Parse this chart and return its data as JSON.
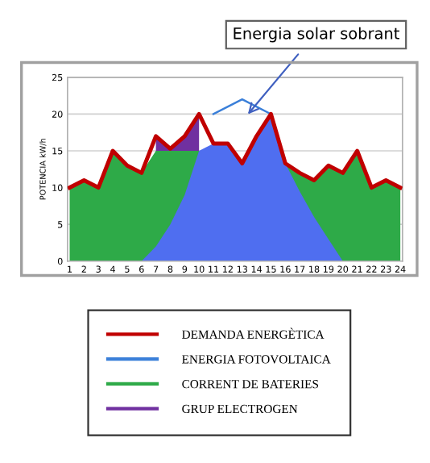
{
  "chart_data": {
    "type": "area",
    "ylabel": "POTENCIA kW/h",
    "categories": [
      "1",
      "2",
      "3",
      "4",
      "5",
      "6",
      "7",
      "8",
      "9",
      "10",
      "11",
      "12",
      "13",
      "14",
      "15",
      "16",
      "17",
      "18",
      "19",
      "20",
      "21",
      "22",
      "23",
      "24"
    ],
    "series": [
      {
        "name": "DEMANDA ENERGÈTICA",
        "type": "line",
        "color": "#c00000",
        "values": [
          10,
          11,
          10,
          15,
          13,
          12,
          17,
          15.3,
          17,
          20,
          16,
          16,
          13.3,
          17,
          20,
          13.3,
          12,
          11,
          13,
          12,
          15,
          10,
          11,
          10
        ]
      },
      {
        "name": "ENERGIA FOTOVOLTAICA",
        "type": "line",
        "color": "#3a7fd9",
        "values": [
          null,
          null,
          null,
          null,
          null,
          null,
          null,
          null,
          null,
          null,
          20,
          null,
          22,
          null,
          20,
          null,
          null,
          null,
          null,
          null,
          null,
          null,
          null,
          null
        ]
      },
      {
        "color": "#4f6ef0",
        "values": [
          null,
          null,
          null,
          null,
          null,
          0,
          2,
          5,
          9,
          15,
          16,
          16,
          13.3,
          17,
          20,
          13.3,
          9.5,
          6,
          3,
          0,
          null,
          null,
          null,
          null
        ]
      },
      {
        "name": "CORRENT DE BATERIES",
        "color": "#2eaa48",
        "values": [
          10,
          11,
          10,
          15,
          13,
          12,
          15,
          15,
          15,
          15,
          null,
          null,
          null,
          null,
          null,
          13.3,
          12,
          11,
          13,
          12,
          15,
          10,
          11,
          10
        ]
      },
      {
        "name": "GRUP ELECTROGEN",
        "color": "#7030a0",
        "values": [
          null,
          null,
          null,
          null,
          null,
          null,
          17,
          15.3,
          17,
          20,
          null,
          null,
          null,
          null,
          null,
          null,
          null,
          null,
          null,
          null,
          null,
          null,
          null,
          null
        ]
      }
    ],
    "ylim": [
      0,
      25
    ],
    "yticks": [
      0,
      5,
      10,
      15,
      20,
      25
    ],
    "grid": "y",
    "legend": "bottom",
    "annotations": [
      "Energia solar sobrant"
    ]
  }
}
